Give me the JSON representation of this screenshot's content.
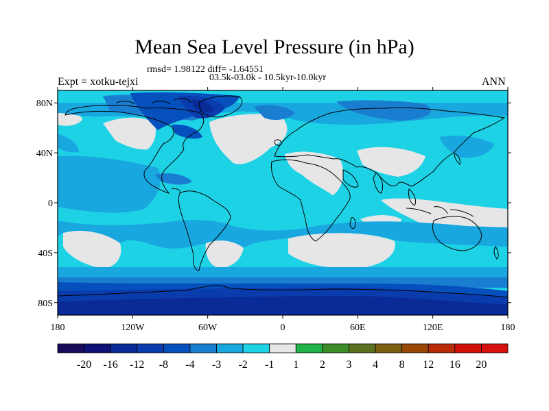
{
  "title": "Mean Sea Level Pressure (in hPa)",
  "stats": "rmsd= 1.98122 diff= -1.64551",
  "period": "03.5k-03.0k - 10.5kyr-10.0kyr",
  "experiment": "Expt = xotku-tejxi",
  "season": "ANN",
  "map": {
    "projection": "equirectangular",
    "lon_range": [
      -180,
      180
    ],
    "lat_range": [
      -90,
      90
    ],
    "x_ticks": [
      "180",
      "120W",
      "60W",
      "0",
      "60E",
      "120E",
      "180"
    ],
    "y_ticks": [
      "80N",
      "40N",
      "0",
      "40S",
      "80S"
    ],
    "y_tick_lats": [
      80,
      40,
      0,
      -40,
      -80
    ]
  },
  "colorbar": {
    "colors": [
      "#1a0a5c",
      "#0d1175",
      "#0a2a96",
      "#0a3cad",
      "#0650bd",
      "#1a7ed0",
      "#19a7e0",
      "#1ed2e6",
      "#e6e6e6",
      "#22b34a",
      "#3c8c2a",
      "#5a7020",
      "#7a6010",
      "#9a4808",
      "#b82c08",
      "#d01006",
      "#d81010"
    ],
    "labels": [
      "-20",
      "-16",
      "-12",
      "-8",
      "-4",
      "-3",
      "-2",
      "-1",
      "1",
      "2",
      "3",
      "4",
      "8",
      "12",
      "16",
      "20"
    ]
  }
}
